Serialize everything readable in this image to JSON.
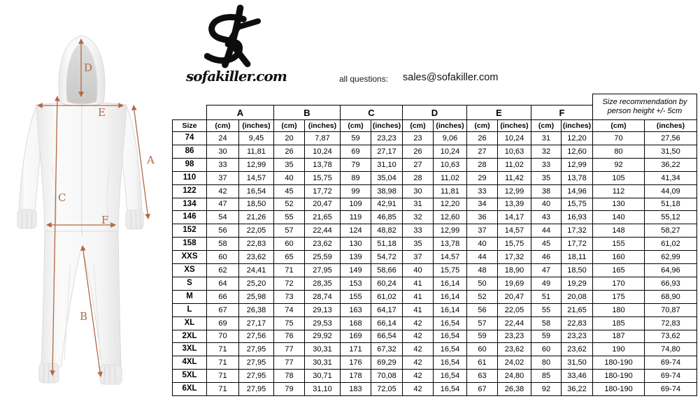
{
  "brand": {
    "site": "sofakiller.com"
  },
  "contact": {
    "label": "all questions:",
    "email": "sales@sofakiller.com"
  },
  "diagram": {
    "arrow_color": "#b06a42",
    "labels": {
      "A": "A",
      "B": "B",
      "C": "C",
      "D": "D",
      "E": "E",
      "F": "F"
    }
  },
  "table": {
    "corner_label": "Size",
    "groups": [
      "A",
      "B",
      "C",
      "D",
      "E",
      "F"
    ],
    "sub_headers": [
      "Size",
      "(cm)",
      "(inches)",
      "(cm)",
      "(inches)",
      "(cm)",
      "(inches)",
      "(cm)",
      "(inches)",
      "(cm)",
      "(inches)",
      "(cm)",
      "(inches)",
      "(cm)",
      "(inches)"
    ],
    "rec_header_line1": "Size recommendation by",
    "rec_header_line2": "person height +/- 5cm",
    "rows": [
      {
        "size": "74",
        "values": [
          "24",
          "9,45",
          "20",
          "7,87",
          "59",
          "23,23",
          "23",
          "9,06",
          "26",
          "10,24",
          "31",
          "12,20",
          "70",
          "27,56"
        ]
      },
      {
        "size": "86",
        "values": [
          "30",
          "11,81",
          "26",
          "10,24",
          "69",
          "27,17",
          "26",
          "10,24",
          "27",
          "10,63",
          "32",
          "12,60",
          "80",
          "31,50"
        ]
      },
      {
        "size": "98",
        "values": [
          "33",
          "12,99",
          "35",
          "13,78",
          "79",
          "31,10",
          "27",
          "10,63",
          "28",
          "11,02",
          "33",
          "12,99",
          "92",
          "36,22"
        ]
      },
      {
        "size": "110",
        "values": [
          "37",
          "14,57",
          "40",
          "15,75",
          "89",
          "35,04",
          "28",
          "11,02",
          "29",
          "11,42",
          "35",
          "13,78",
          "105",
          "41,34"
        ]
      },
      {
        "size": "122",
        "values": [
          "42",
          "16,54",
          "45",
          "17,72",
          "99",
          "38,98",
          "30",
          "11,81",
          "33",
          "12,99",
          "38",
          "14,96",
          "112",
          "44,09"
        ]
      },
      {
        "size": "134",
        "values": [
          "47",
          "18,50",
          "52",
          "20,47",
          "109",
          "42,91",
          "31",
          "12,20",
          "34",
          "13,39",
          "40",
          "15,75",
          "130",
          "51,18"
        ]
      },
      {
        "size": "146",
        "values": [
          "54",
          "21,26",
          "55",
          "21,65",
          "119",
          "46,85",
          "32",
          "12,60",
          "36",
          "14,17",
          "43",
          "16,93",
          "140",
          "55,12"
        ]
      },
      {
        "size": "152",
        "values": [
          "56",
          "22,05",
          "57",
          "22,44",
          "124",
          "48,82",
          "33",
          "12,99",
          "37",
          "14,57",
          "44",
          "17,32",
          "148",
          "58,27"
        ]
      },
      {
        "size": "158",
        "values": [
          "58",
          "22,83",
          "60",
          "23,62",
          "130",
          "51,18",
          "35",
          "13,78",
          "40",
          "15,75",
          "45",
          "17,72",
          "155",
          "61,02"
        ]
      },
      {
        "size": "XXS",
        "values": [
          "60",
          "23,62",
          "65",
          "25,59",
          "139",
          "54,72",
          "37",
          "14,57",
          "44",
          "17,32",
          "46",
          "18,11",
          "160",
          "62,99"
        ]
      },
      {
        "size": "XS",
        "values": [
          "62",
          "24,41",
          "71",
          "27,95",
          "149",
          "58,66",
          "40",
          "15,75",
          "48",
          "18,90",
          "47",
          "18,50",
          "165",
          "64,96"
        ]
      },
      {
        "size": "S",
        "values": [
          "64",
          "25,20",
          "72",
          "28,35",
          "153",
          "60,24",
          "41",
          "16,14",
          "50",
          "19,69",
          "49",
          "19,29",
          "170",
          "66,93"
        ]
      },
      {
        "size": "M",
        "values": [
          "66",
          "25,98",
          "73",
          "28,74",
          "155",
          "61,02",
          "41",
          "16,14",
          "52",
          "20,47",
          "51",
          "20,08",
          "175",
          "68,90"
        ]
      },
      {
        "size": "L",
        "values": [
          "67",
          "26,38",
          "74",
          "29,13",
          "163",
          "64,17",
          "41",
          "16,14",
          "56",
          "22,05",
          "55",
          "21,65",
          "180",
          "70,87"
        ]
      },
      {
        "size": "XL",
        "values": [
          "69",
          "27,17",
          "75",
          "29,53",
          "168",
          "66,14",
          "42",
          "16,54",
          "57",
          "22,44",
          "58",
          "22,83",
          "185",
          "72,83"
        ]
      },
      {
        "size": "2XL",
        "values": [
          "70",
          "27,56",
          "76",
          "29,92",
          "169",
          "66,54",
          "42",
          "16,54",
          "59",
          "23,23",
          "59",
          "23,23",
          "187",
          "73,62"
        ]
      },
      {
        "size": "3XL",
        "values": [
          "71",
          "27,95",
          "77",
          "30,31",
          "171",
          "67,32",
          "42",
          "16,54",
          "60",
          "23,62",
          "60",
          "23,62",
          "190",
          "74,80"
        ]
      },
      {
        "size": "4XL",
        "values": [
          "71",
          "27,95",
          "77",
          "30,31",
          "176",
          "69,29",
          "42",
          "16,54",
          "61",
          "24,02",
          "80",
          "31,50",
          "180-190",
          "69-74"
        ]
      },
      {
        "size": "5XL",
        "values": [
          "71",
          "27,95",
          "78",
          "30,71",
          "178",
          "70,08",
          "42",
          "16,54",
          "63",
          "24,80",
          "85",
          "33,46",
          "180-190",
          "69-74"
        ]
      },
      {
        "size": "6XL",
        "values": [
          "71",
          "27,95",
          "79",
          "31,10",
          "183",
          "72,05",
          "42",
          "16,54",
          "67",
          "26,38",
          "92",
          "36,22",
          "180-190",
          "69-74"
        ]
      }
    ]
  }
}
